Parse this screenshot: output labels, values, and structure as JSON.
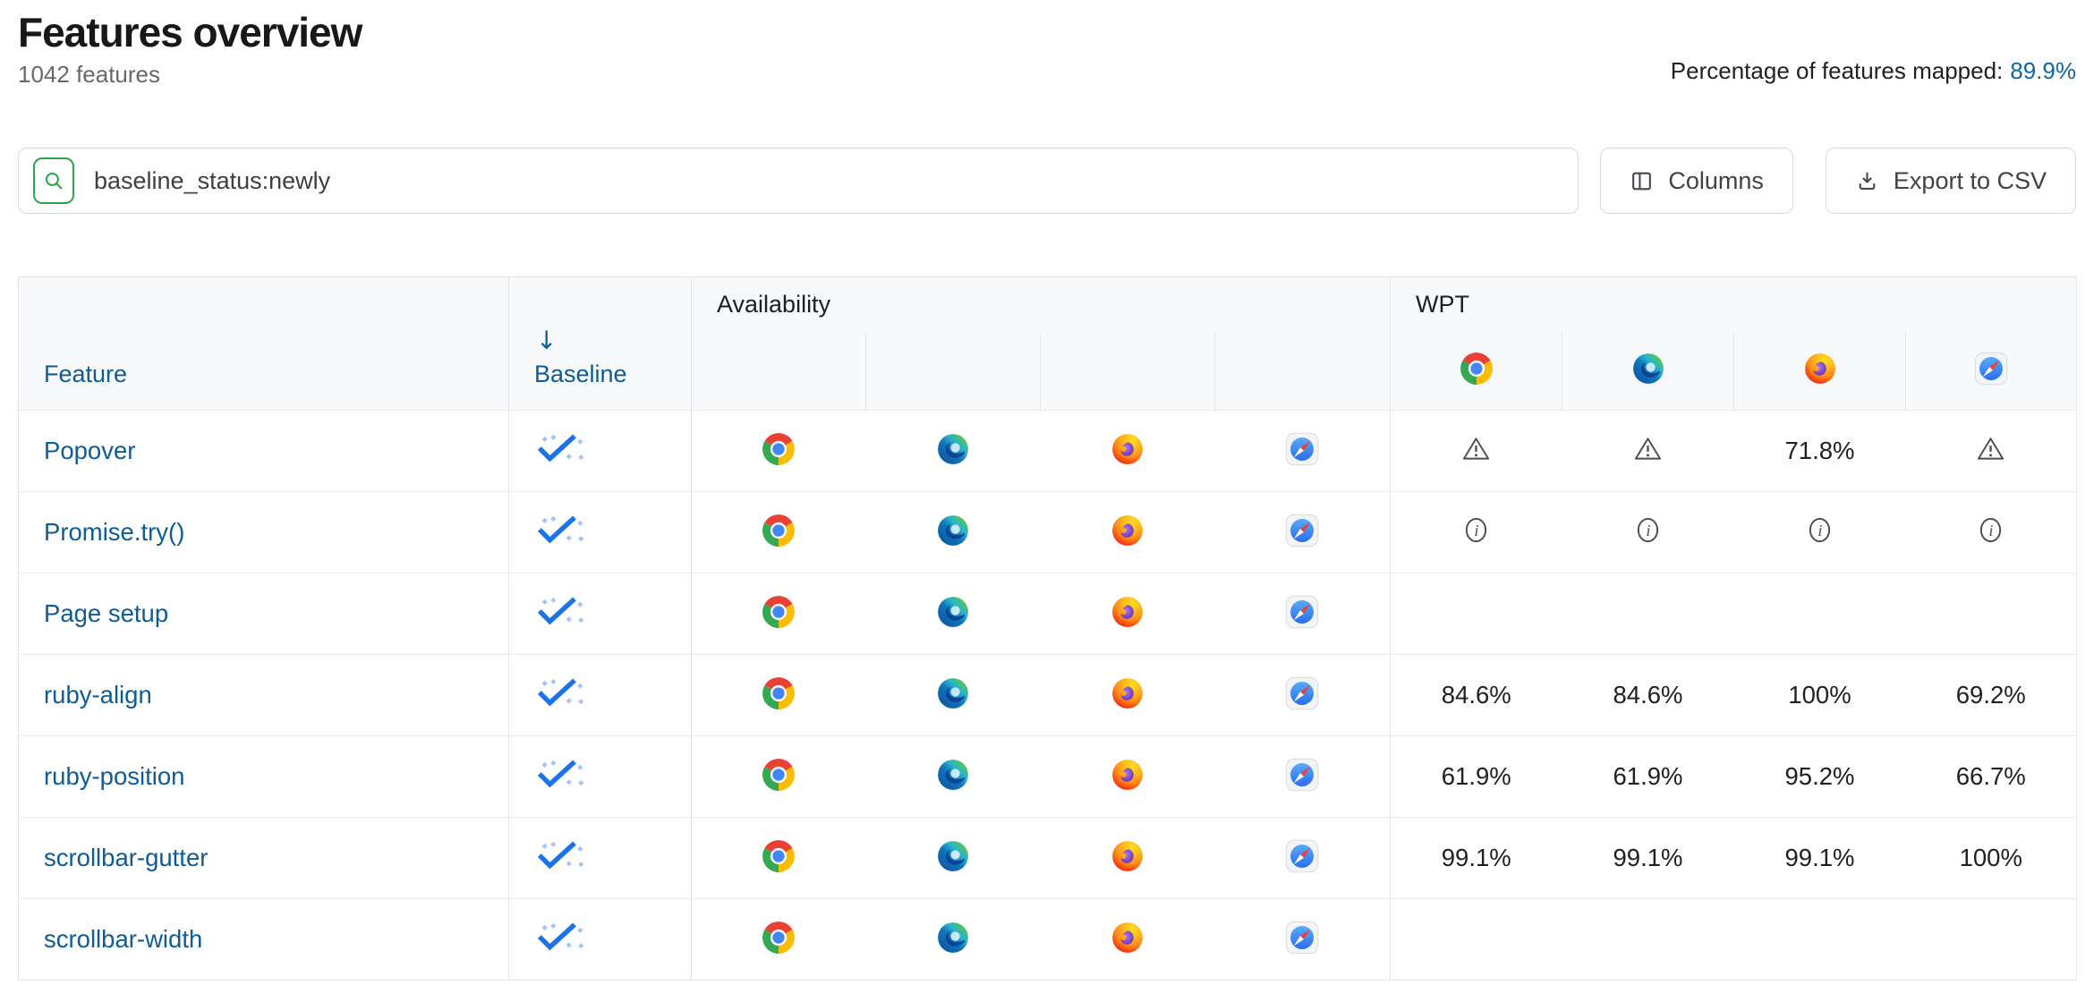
{
  "header": {
    "title": "Features overview",
    "feature_count": "1042 features",
    "mapped_label": "Percentage of features mapped:",
    "mapped_value": "89.9%"
  },
  "toolbar": {
    "search_value": "baseline_status:newly",
    "columns_label": "Columns",
    "export_label": "Export to CSV"
  },
  "table": {
    "columns": {
      "feature": "Feature",
      "baseline": "Baseline",
      "availability": "Availability",
      "wpt": "WPT",
      "sort_arrow": "↓"
    },
    "browsers": [
      "chrome",
      "edge",
      "firefox",
      "safari"
    ],
    "rows": [
      {
        "feature": "Popover",
        "baseline": "newly",
        "availability": [
          "chrome",
          "edge",
          "firefox",
          "safari"
        ],
        "wpt": [
          {
            "type": "warning"
          },
          {
            "type": "warning"
          },
          {
            "type": "percent",
            "value": "71.8%"
          },
          {
            "type": "warning"
          }
        ]
      },
      {
        "feature": "Promise.try()",
        "baseline": "newly",
        "availability": [
          "chrome",
          "edge",
          "firefox",
          "safari"
        ],
        "wpt": [
          {
            "type": "info"
          },
          {
            "type": "info"
          },
          {
            "type": "info"
          },
          {
            "type": "info"
          }
        ]
      },
      {
        "feature": "Page setup",
        "baseline": "newly",
        "availability": [
          "chrome",
          "edge",
          "firefox",
          "safari"
        ],
        "wpt": [
          {
            "type": "none"
          },
          {
            "type": "none"
          },
          {
            "type": "none"
          },
          {
            "type": "none"
          }
        ]
      },
      {
        "feature": "ruby-align",
        "baseline": "newly",
        "availability": [
          "chrome",
          "edge",
          "firefox",
          "safari"
        ],
        "wpt": [
          {
            "type": "percent",
            "value": "84.6%"
          },
          {
            "type": "percent",
            "value": "84.6%"
          },
          {
            "type": "percent",
            "value": "100%"
          },
          {
            "type": "percent",
            "value": "69.2%"
          }
        ]
      },
      {
        "feature": "ruby-position",
        "baseline": "newly",
        "availability": [
          "chrome",
          "edge",
          "firefox",
          "safari"
        ],
        "wpt": [
          {
            "type": "percent",
            "value": "61.9%"
          },
          {
            "type": "percent",
            "value": "61.9%"
          },
          {
            "type": "percent",
            "value": "95.2%"
          },
          {
            "type": "percent",
            "value": "66.7%"
          }
        ]
      },
      {
        "feature": "scrollbar-gutter",
        "baseline": "newly",
        "availability": [
          "chrome",
          "edge",
          "firefox",
          "safari"
        ],
        "wpt": [
          {
            "type": "percent",
            "value": "99.1%"
          },
          {
            "type": "percent",
            "value": "99.1%"
          },
          {
            "type": "percent",
            "value": "99.1%"
          },
          {
            "type": "percent",
            "value": "100%"
          }
        ]
      },
      {
        "feature": "scrollbar-width",
        "baseline": "newly",
        "availability": [
          "chrome",
          "edge",
          "firefox",
          "safari"
        ],
        "wpt": [
          {
            "type": "none"
          },
          {
            "type": "none"
          },
          {
            "type": "none"
          },
          {
            "type": "none"
          }
        ]
      }
    ]
  },
  "colors": {
    "link_blue": "#0e5c96",
    "search_green": "#2da44e",
    "baseline_newly_blue": "#1a73e8",
    "baseline_newly_dots": "#a6c4f7",
    "header_bg": "#f8f9fa",
    "border": "#e3e5e8",
    "muted_icon_gray": "#4a4d51"
  }
}
